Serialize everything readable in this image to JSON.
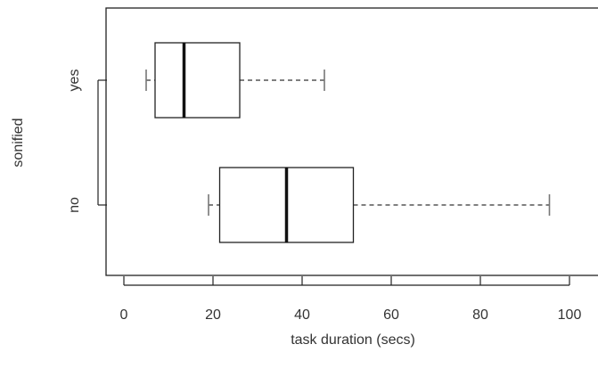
{
  "chart_data": {
    "type": "boxplot",
    "orientation": "horizontal",
    "title": "",
    "xlabel": "task duration (secs)",
    "ylabel": "sonified",
    "xlim": [
      -4,
      107
    ],
    "xticks": [
      0,
      20,
      40,
      60,
      80,
      100
    ],
    "categories": [
      "no",
      "yes"
    ],
    "boxes": [
      {
        "category": "no",
        "min": 19,
        "q1": 21.5,
        "median": 36.5,
        "q3": 51.5,
        "max": 95.5
      },
      {
        "category": "yes",
        "min": 5,
        "q1": 7,
        "median": 13.5,
        "q3": 26,
        "max": 45
      }
    ],
    "grid": false,
    "legend": "none"
  }
}
